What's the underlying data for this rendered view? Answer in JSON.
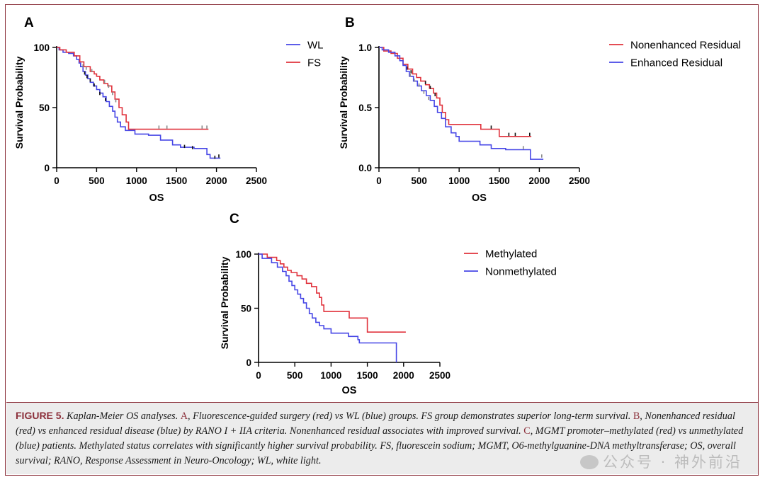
{
  "colors": {
    "red": "#e0323c",
    "blue": "#4646e6",
    "border": "#8b2f3a",
    "censor_gray": "#888888"
  },
  "caption": {
    "lead": "FIGURE 5.",
    "segments": [
      {
        "text": " Kaplan-Meier OS analyses. ",
        "letter": false
      },
      {
        "text": "A",
        "letter": true
      },
      {
        "text": ", Fluorescence-guided surgery (red) vs WL (blue) groups. FS group demonstrates superior long-term survival. ",
        "letter": false
      },
      {
        "text": "B",
        "letter": true
      },
      {
        "text": ", Nonenhanced residual (red) vs enhanced residual disease (blue) by RANO I + IIA criteria. Nonenhanced residual associates with improved survival. ",
        "letter": false
      },
      {
        "text": "C",
        "letter": true
      },
      {
        "text": ", MGMT promoter–methylated (red) vs unmethylated (blue) patients. Methylated status correlates with significantly higher survival probability. FS, fluorescein sodium; MGMT, O6-methylguanine-DNA methyltransferase; OS, overall survival; RANO, Response Assessment in Neuro-Oncology; WL, white light.",
        "letter": false
      }
    ]
  },
  "watermark": "公众号 · 神外前沿",
  "chart_data": [
    {
      "panel": "A",
      "type": "line",
      "xlabel": "OS",
      "ylabel": "Survival Probability",
      "xlim": [
        0,
        2500
      ],
      "ylim": [
        0,
        100
      ],
      "xticks": [
        "0",
        "500",
        "1000",
        "1500",
        "2000",
        "2500"
      ],
      "yticks": [
        "0",
        "50",
        "100"
      ],
      "legend_position": "top-right",
      "series": [
        {
          "name": "WL",
          "color": "blue",
          "steps": [
            [
              0,
              100
            ],
            [
              30,
              98
            ],
            [
              80,
              96
            ],
            [
              150,
              95
            ],
            [
              210,
              93
            ],
            [
              250,
              90
            ],
            [
              280,
              87
            ],
            [
              300,
              84
            ],
            [
              330,
              80
            ],
            [
              360,
              77
            ],
            [
              390,
              74
            ],
            [
              420,
              71
            ],
            [
              460,
              68
            ],
            [
              500,
              65
            ],
            [
              540,
              62
            ],
            [
              580,
              59
            ],
            [
              620,
              55
            ],
            [
              660,
              51
            ],
            [
              700,
              47
            ],
            [
              730,
              42
            ],
            [
              760,
              38
            ],
            [
              800,
              34
            ],
            [
              860,
              31
            ],
            [
              980,
              28
            ],
            [
              1150,
              27
            ],
            [
              1300,
              23
            ],
            [
              1450,
              19
            ],
            [
              1550,
              17
            ],
            [
              1720,
              16
            ],
            [
              1880,
              11
            ],
            [
              1920,
              8
            ],
            [
              2050,
              8
            ]
          ],
          "censor": [
            [
              350,
              78
            ],
            [
              380,
              75
            ],
            [
              420,
              72
            ],
            [
              470,
              68
            ],
            [
              540,
              61
            ],
            [
              610,
              56
            ],
            [
              1600,
              17
            ],
            [
              1700,
              16
            ],
            [
              1980,
              8
            ],
            [
              2030,
              9
            ]
          ]
        },
        {
          "name": "FS",
          "color": "red",
          "steps": [
            [
              0,
              100
            ],
            [
              40,
              98
            ],
            [
              120,
              96
            ],
            [
              220,
              93
            ],
            [
              290,
              88
            ],
            [
              340,
              84
            ],
            [
              420,
              80
            ],
            [
              470,
              78
            ],
            [
              500,
              76
            ],
            [
              540,
              73
            ],
            [
              590,
              70
            ],
            [
              640,
              68
            ],
            [
              690,
              63
            ],
            [
              730,
              57
            ],
            [
              780,
              50
            ],
            [
              820,
              44
            ],
            [
              870,
              38
            ],
            [
              900,
              32
            ],
            [
              1300,
              32
            ],
            [
              1900,
              32
            ]
          ],
          "censor": [
            [
              330,
              84
            ],
            [
              370,
              82
            ],
            [
              440,
              80
            ],
            [
              600,
              71
            ],
            [
              650,
              67
            ],
            [
              700,
              61
            ],
            [
              740,
              55
            ],
            [
              1280,
              33
            ],
            [
              1380,
              33
            ],
            [
              1820,
              33
            ],
            [
              1880,
              33
            ]
          ]
        }
      ]
    },
    {
      "panel": "B",
      "type": "line",
      "xlabel": "OS",
      "ylabel": "Survival Probability",
      "xlim": [
        0,
        2500
      ],
      "ylim": [
        0,
        1.0
      ],
      "xticks": [
        "0",
        "500",
        "1000",
        "1500",
        "2000",
        "2500"
      ],
      "yticks": [
        "0.0",
        "0.5",
        "1.0"
      ],
      "legend_position": "top-right",
      "series": [
        {
          "name": "Nonenhanced Residual",
          "color": "red",
          "steps": [
            [
              0,
              1.0
            ],
            [
              60,
              0.97
            ],
            [
              150,
              0.95
            ],
            [
              230,
              0.91
            ],
            [
              300,
              0.86
            ],
            [
              360,
              0.82
            ],
            [
              420,
              0.78
            ],
            [
              470,
              0.75
            ],
            [
              520,
              0.72
            ],
            [
              580,
              0.69
            ],
            [
              630,
              0.66
            ],
            [
              680,
              0.62
            ],
            [
              720,
              0.58
            ],
            [
              760,
              0.52
            ],
            [
              790,
              0.46
            ],
            [
              830,
              0.4
            ],
            [
              870,
              0.36
            ],
            [
              1270,
              0.32
            ],
            [
              1500,
              0.26
            ],
            [
              1900,
              0.26
            ]
          ],
          "censor": [
            [
              350,
              0.82
            ],
            [
              400,
              0.79
            ],
            [
              580,
              0.7
            ],
            [
              640,
              0.66
            ],
            [
              700,
              0.6
            ],
            [
              1400,
              0.33
            ],
            [
              1620,
              0.27
            ],
            [
              1700,
              0.27
            ],
            [
              1880,
              0.27
            ]
          ]
        },
        {
          "name": "Enhanced Residual",
          "color": "blue",
          "steps": [
            [
              0,
              1.0
            ],
            [
              40,
              0.98
            ],
            [
              120,
              0.96
            ],
            [
              200,
              0.93
            ],
            [
              260,
              0.89
            ],
            [
              300,
              0.85
            ],
            [
              340,
              0.8
            ],
            [
              380,
              0.76
            ],
            [
              430,
              0.72
            ],
            [
              480,
              0.68
            ],
            [
              530,
              0.64
            ],
            [
              590,
              0.6
            ],
            [
              640,
              0.56
            ],
            [
              690,
              0.51
            ],
            [
              730,
              0.46
            ],
            [
              780,
              0.41
            ],
            [
              830,
              0.34
            ],
            [
              900,
              0.29
            ],
            [
              960,
              0.26
            ],
            [
              1000,
              0.22
            ],
            [
              1260,
              0.19
            ],
            [
              1400,
              0.16
            ],
            [
              1580,
              0.15
            ],
            [
              1890,
              0.07
            ],
            [
              2050,
              0.07
            ]
          ],
          "censor": [
            [
              390,
              0.76
            ],
            [
              440,
              0.72
            ],
            [
              500,
              0.68
            ],
            [
              560,
              0.62
            ],
            [
              620,
              0.57
            ],
            [
              1800,
              0.16
            ],
            [
              2030,
              0.09
            ]
          ]
        }
      ]
    },
    {
      "panel": "C",
      "type": "line",
      "xlabel": "OS",
      "ylabel": "Survival Probability",
      "xlim": [
        0,
        2500
      ],
      "ylim": [
        0,
        100
      ],
      "xticks": [
        "0",
        "500",
        "1000",
        "1500",
        "2000",
        "2500"
      ],
      "yticks": [
        "0",
        "50",
        "100"
      ],
      "legend_position": "top-right",
      "series": [
        {
          "name": "Methylated",
          "color": "red",
          "steps": [
            [
              0,
              100
            ],
            [
              120,
              97
            ],
            [
              250,
              94
            ],
            [
              300,
              91
            ],
            [
              350,
              88
            ],
            [
              400,
              85
            ],
            [
              450,
              83
            ],
            [
              530,
              80
            ],
            [
              600,
              77
            ],
            [
              660,
              73
            ],
            [
              730,
              70
            ],
            [
              800,
              64
            ],
            [
              840,
              60
            ],
            [
              870,
              53
            ],
            [
              900,
              47
            ],
            [
              1250,
              41
            ],
            [
              1500,
              28
            ],
            [
              2030,
              28
            ]
          ],
          "censor": []
        },
        {
          "name": "Nonmethylated",
          "color": "blue",
          "steps": [
            [
              0,
              100
            ],
            [
              50,
              96
            ],
            [
              180,
              92
            ],
            [
              260,
              88
            ],
            [
              330,
              84
            ],
            [
              380,
              80
            ],
            [
              420,
              75
            ],
            [
              460,
              71
            ],
            [
              500,
              67
            ],
            [
              540,
              63
            ],
            [
              580,
              59
            ],
            [
              620,
              55
            ],
            [
              660,
              50
            ],
            [
              700,
              45
            ],
            [
              740,
              41
            ],
            [
              790,
              37
            ],
            [
              840,
              34
            ],
            [
              900,
              31
            ],
            [
              1000,
              27
            ],
            [
              1240,
              24
            ],
            [
              1370,
              21
            ],
            [
              1390,
              18
            ],
            [
              1900,
              0
            ]
          ],
          "censor": []
        }
      ]
    }
  ]
}
